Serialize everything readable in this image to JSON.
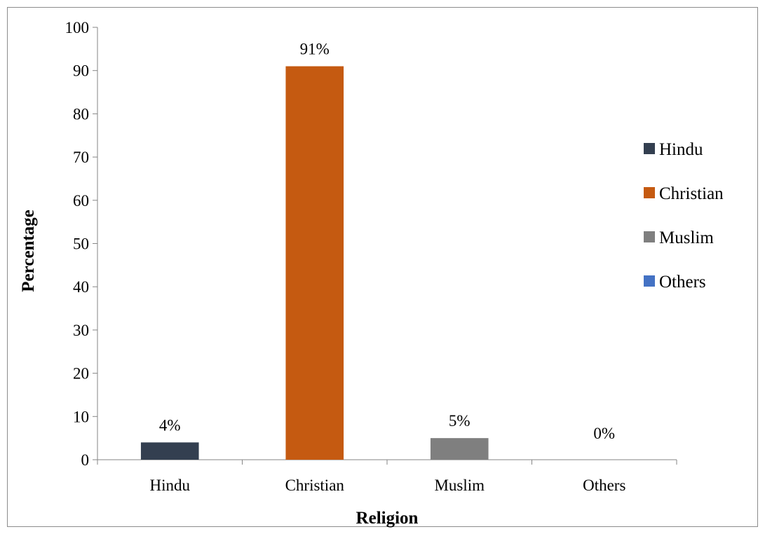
{
  "chart_data": {
    "type": "bar",
    "title": "",
    "xlabel": "Religion",
    "ylabel": "Percentage",
    "categories": [
      "Hindu",
      "Christian",
      "Muslim",
      "Others"
    ],
    "values": [
      4,
      91,
      5,
      0
    ],
    "data_labels": [
      "4%",
      "91%",
      "5%",
      "0%"
    ],
    "colors": [
      "#333f50",
      "#c55a11",
      "#7f7f7f",
      "#4472c4"
    ],
    "ylim": [
      0,
      100
    ],
    "yticks": [
      0,
      10,
      20,
      30,
      40,
      50,
      60,
      70,
      80,
      90,
      100
    ],
    "grid": false,
    "legend": {
      "position": "right",
      "entries": [
        "Hindu",
        "Christian",
        "Muslim",
        "Others"
      ]
    }
  }
}
